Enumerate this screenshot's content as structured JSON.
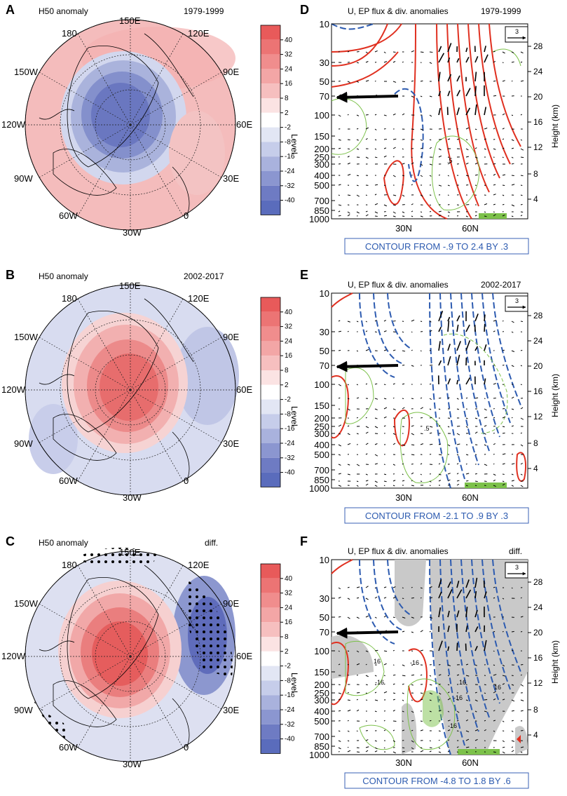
{
  "chart_data": [
    {
      "type": "heatmap",
      "panel": "A",
      "title": "H50 anomaly",
      "period": "1979-1999",
      "colorbar_label": "Level",
      "colorbar_ticks": [
        "40",
        "32",
        "24",
        "16",
        "8",
        "2",
        "-2",
        "-8",
        "-16",
        "-24",
        "-32",
        "-40"
      ],
      "longitude_labels": [
        "150E",
        "120E",
        "90E",
        "60E",
        "30E",
        "0",
        "30W",
        "60W",
        "90W",
        "120W",
        "150W",
        "180"
      ]
    },
    {
      "type": "heatmap",
      "panel": "B",
      "title": "H50 anomaly",
      "period": "2002-2017",
      "colorbar_label": "Level",
      "colorbar_ticks": [
        "40",
        "32",
        "24",
        "16",
        "8",
        "2",
        "-2",
        "-8",
        "-16",
        "-24",
        "-32",
        "-40"
      ],
      "longitude_labels": [
        "150E",
        "120E",
        "90E",
        "60E",
        "30E",
        "0",
        "30W",
        "60W",
        "90W",
        "120W",
        "150W",
        "180"
      ]
    },
    {
      "type": "heatmap",
      "panel": "C",
      "title": "H50 anomaly",
      "period": "diff.",
      "colorbar_label": "Level",
      "colorbar_ticks": [
        "40",
        "32",
        "24",
        "16",
        "8",
        "2",
        "-2",
        "-8",
        "-16",
        "-24",
        "-32",
        "-40"
      ],
      "longitude_labels": [
        "150E",
        "120E",
        "90E",
        "60E",
        "30E",
        "0",
        "30W",
        "60W",
        "90W",
        "120W",
        "150W",
        "180"
      ]
    },
    {
      "type": "line",
      "panel": "D",
      "title": "U, EP flux & div. anomalies",
      "period": "1979-1999",
      "y_left_ticks": [
        "10",
        "30",
        "50",
        "70",
        "100",
        "150",
        "200",
        "250",
        "300",
        "400",
        "500",
        "700",
        "850",
        "1000"
      ],
      "y_right_label": "Height (km)",
      "y_right_ticks": [
        "28",
        "24",
        "20",
        "16",
        "12",
        "8",
        "4"
      ],
      "x_ticks": [
        "30N",
        "60N"
      ],
      "arrow_scale": "3",
      "contour_note": "CONTOUR FROM -.9 TO 2.4 BY .3",
      "contour_labels": [
        ".5"
      ]
    },
    {
      "type": "line",
      "panel": "E",
      "title": "U, EP flux & div. anomalies",
      "period": "2002-2017",
      "y_left_ticks": [
        "10",
        "30",
        "50",
        "70",
        "100",
        "150",
        "200",
        "250",
        "300",
        "400",
        "500",
        "700",
        "850",
        "1000"
      ],
      "y_right_label": "Height (km)",
      "y_right_ticks": [
        "28",
        "24",
        "20",
        "16",
        "12",
        "8",
        "4"
      ],
      "x_ticks": [
        "30N",
        "60N"
      ],
      "arrow_scale": "3",
      "contour_note": "CONTOUR FROM -2.1 TO .9 BY .3",
      "contour_labels": [
        ".5"
      ]
    },
    {
      "type": "line",
      "panel": "F",
      "title": "U, EP flux & div. anomalies",
      "period": "diff.",
      "y_left_ticks": [
        "10",
        "30",
        "50",
        "70",
        "100",
        "150",
        "200",
        "250",
        "300",
        "400",
        "500",
        "700",
        "850",
        "1000"
      ],
      "y_right_label": "Height (km)",
      "y_right_ticks": [
        "28",
        "24",
        "20",
        "16",
        "12",
        "8",
        "4"
      ],
      "x_ticks": [
        "30N",
        "60N"
      ],
      "arrow_scale": "3",
      "contour_note": "CONTOUR FROM -4.8 TO 1.8 BY .6",
      "contour_labels": [
        "16",
        "-16",
        "16",
        "-16",
        "-16",
        "16",
        "-16"
      ]
    }
  ],
  "panel_letters": [
    "A",
    "B",
    "C",
    "D",
    "E",
    "F"
  ],
  "colors": {
    "red_max": "#e85a5a",
    "red_light": "#f6c9c9",
    "blue_max": "#5a6cbc",
    "blue_light": "#d0d6ee",
    "contour_red": "#e03020",
    "contour_blue": "#2d5bb0",
    "contour_green": "#7cc14a",
    "shade_grey": "#c9c9c9"
  }
}
